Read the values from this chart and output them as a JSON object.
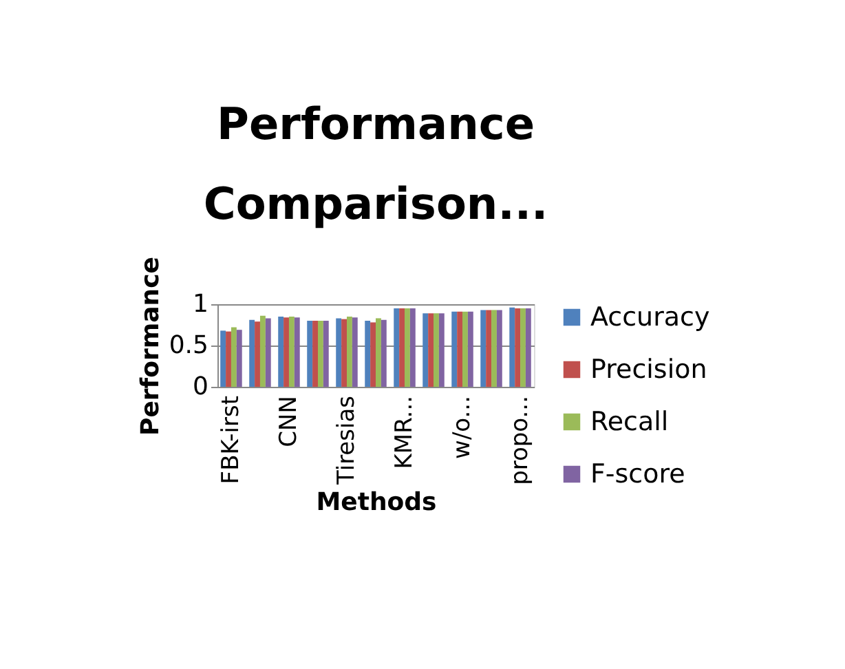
{
  "chart_data": {
    "type": "bar",
    "title": "Performance Comparison...",
    "xlabel": "Methods",
    "ylabel": "Performance",
    "categories": [
      "FBK-irst",
      null,
      "CNN",
      null,
      "Tiresias",
      null,
      "KMR...",
      null,
      "w/o...",
      null,
      "propo..."
    ],
    "series": [
      {
        "name": "Accuracy",
        "color": "#4f81bd",
        "values": [
          0.68,
          0.81,
          0.85,
          0.8,
          0.83,
          0.8,
          0.95,
          0.89,
          0.91,
          0.93,
          0.96
        ]
      },
      {
        "name": "Precision",
        "color": "#c0504d",
        "values": [
          0.67,
          0.79,
          0.84,
          0.8,
          0.82,
          0.78,
          0.95,
          0.89,
          0.91,
          0.93,
          0.95
        ]
      },
      {
        "name": "Recall",
        "color": "#9bbb59",
        "values": [
          0.72,
          0.86,
          0.85,
          0.8,
          0.85,
          0.83,
          0.95,
          0.89,
          0.91,
          0.93,
          0.95
        ]
      },
      {
        "name": "F-score",
        "color": "#8064a2",
        "values": [
          0.69,
          0.83,
          0.84,
          0.8,
          0.84,
          0.81,
          0.95,
          0.89,
          0.91,
          0.93,
          0.95
        ]
      }
    ],
    "ylim": [
      0,
      1
    ],
    "yticks": [
      0,
      0.5,
      1
    ],
    "grid": "y",
    "legend": "right"
  }
}
